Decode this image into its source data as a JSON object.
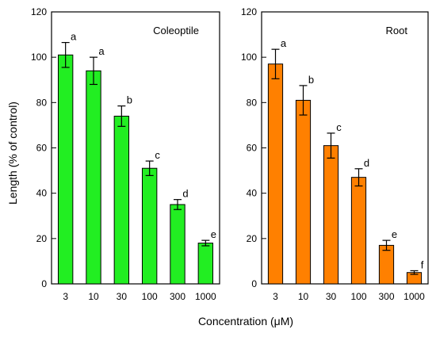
{
  "ylabel": "Length  (% of control)",
  "xlabel": "Concentration (μM)",
  "chart_data": [
    {
      "type": "bar",
      "title": "Coleoptile",
      "color": "#22ee22",
      "categories": [
        "3",
        "10",
        "30",
        "100",
        "300",
        "1000"
      ],
      "values": [
        101,
        94,
        74,
        51,
        35,
        18
      ],
      "errors": [
        5.5,
        6,
        4.5,
        3.2,
        2.2,
        1.2
      ],
      "letters": [
        "a",
        "a",
        "b",
        "c",
        "d",
        "e"
      ],
      "ylim": [
        0,
        120
      ],
      "yticks": [
        "0",
        "20",
        "40",
        "60",
        "80",
        "100",
        "120"
      ]
    },
    {
      "type": "bar",
      "title": "Root",
      "color": "#ff8000",
      "categories": [
        "3",
        "10",
        "30",
        "100",
        "300",
        "1000"
      ],
      "values": [
        97,
        81,
        61,
        47,
        17,
        5
      ],
      "errors": [
        6.5,
        6.5,
        5.5,
        3.8,
        2.2,
        0.8
      ],
      "letters": [
        "a",
        "b",
        "c",
        "d",
        "e",
        "f"
      ],
      "ylim": [
        0,
        120
      ],
      "yticks": [
        "0",
        "20",
        "40",
        "60",
        "80",
        "100",
        "120"
      ]
    }
  ]
}
